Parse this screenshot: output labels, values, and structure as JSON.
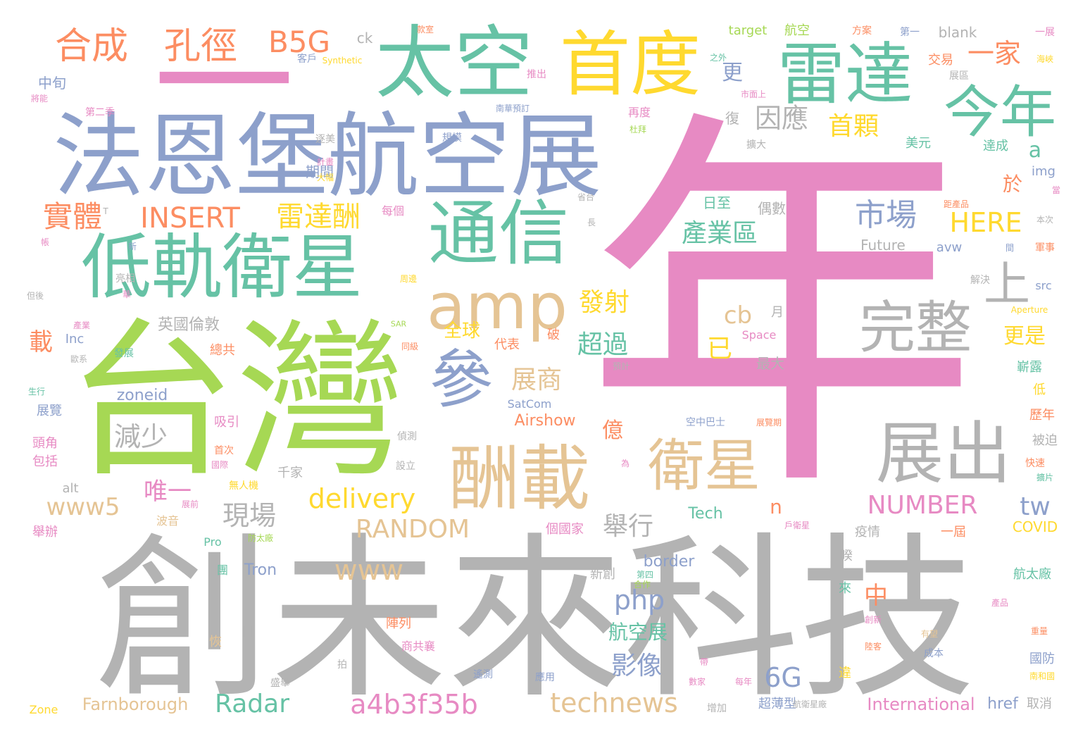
{
  "palette": {
    "pink": "#e78ac3",
    "gray": "#b3b3b3",
    "green": "#66c2a5",
    "orange": "#fc8d62",
    "blue": "#8da0cb",
    "lime": "#a6d854",
    "yellow": "#ffd92f",
    "tan": "#e5c494"
  },
  "words": [
    {
      "text": "年",
      "color": "pink"
    },
    {
      "text": "創未來科技",
      "color": "gray"
    },
    {
      "text": "台灣",
      "color": "lime"
    },
    {
      "text": "法恩堡航空展",
      "color": "blue"
    },
    {
      "text": "一",
      "color": "pink"
    },
    {
      "text": "太空",
      "color": "green"
    },
    {
      "text": "首度",
      "color": "yellow"
    },
    {
      "text": "雷達",
      "color": "green"
    },
    {
      "text": "今年",
      "color": "green"
    },
    {
      "text": "低軌衛星",
      "color": "green"
    },
    {
      "text": "通信",
      "color": "green"
    },
    {
      "text": "amp",
      "color": "tan"
    },
    {
      "text": "參",
      "color": "blue"
    },
    {
      "text": "酬載",
      "color": "tan"
    },
    {
      "text": "衛星",
      "color": "tan"
    },
    {
      "text": "完整",
      "color": "gray"
    },
    {
      "text": "展出",
      "color": "gray"
    },
    {
      "text": "上",
      "color": "gray"
    },
    {
      "text": "合成",
      "color": "orange"
    },
    {
      "text": "孔徑",
      "color": "orange"
    },
    {
      "text": "B5G",
      "color": "orange"
    },
    {
      "text": "實體",
      "color": "orange"
    },
    {
      "text": "INSERT",
      "color": "orange"
    },
    {
      "text": "雷達酬",
      "color": "yellow"
    },
    {
      "text": "市場",
      "color": "blue"
    },
    {
      "text": "HERE",
      "color": "yellow"
    },
    {
      "text": "產業區",
      "color": "green"
    },
    {
      "text": "因應",
      "color": "gray"
    },
    {
      "text": "首顆",
      "color": "yellow"
    },
    {
      "text": "一家",
      "color": "orange"
    },
    {
      "text": "a",
      "color": "green"
    },
    {
      "text": "於",
      "color": "orange"
    },
    {
      "text": "更",
      "color": "blue"
    },
    {
      "text": "發射",
      "color": "yellow"
    },
    {
      "text": "超過",
      "color": "green"
    },
    {
      "text": "cb",
      "color": "tan"
    },
    {
      "text": "已",
      "color": "yellow"
    },
    {
      "text": "全球",
      "color": "yellow"
    },
    {
      "text": "展商",
      "color": "tan"
    },
    {
      "text": "減少",
      "color": "gray"
    },
    {
      "text": "www5",
      "color": "tan"
    },
    {
      "text": "唯一",
      "color": "pink"
    },
    {
      "text": "delivery",
      "color": "yellow"
    },
    {
      "text": "現場",
      "color": "gray"
    },
    {
      "text": "RANDOM",
      "color": "tan"
    },
    {
      "text": "www",
      "color": "tan"
    },
    {
      "text": "舉行",
      "color": "gray"
    },
    {
      "text": "n",
      "color": "orange"
    },
    {
      "text": "NUMBER",
      "color": "pink"
    },
    {
      "text": "tw",
      "color": "blue"
    },
    {
      "text": "php",
      "color": "blue"
    },
    {
      "text": "中",
      "color": "orange"
    },
    {
      "text": "影像",
      "color": "blue"
    },
    {
      "text": "6G",
      "color": "blue"
    },
    {
      "text": "Radar",
      "color": "green"
    },
    {
      "text": "a4b3f35b",
      "color": "pink"
    },
    {
      "text": "technews",
      "color": "tan"
    },
    {
      "text": "更是",
      "color": "yellow"
    },
    {
      "text": "億",
      "color": "orange"
    },
    {
      "text": "航空展",
      "color": "green"
    },
    {
      "text": "載",
      "color": "orange"
    },
    {
      "text": "英國倫敦",
      "color": "gray"
    },
    {
      "text": "zoneid",
      "color": "blue"
    },
    {
      "text": "Airshow",
      "color": "orange"
    },
    {
      "text": "Farnborough",
      "color": "tan"
    },
    {
      "text": "International",
      "color": "pink"
    },
    {
      "text": "Tech",
      "color": "green"
    },
    {
      "text": "Tron",
      "color": "blue"
    },
    {
      "text": "border",
      "color": "blue"
    },
    {
      "text": "COVID",
      "color": "yellow"
    },
    {
      "text": "target",
      "color": "lime"
    },
    {
      "text": "航空",
      "color": "lime"
    },
    {
      "text": "blank",
      "color": "gray"
    },
    {
      "text": "ck",
      "color": "gray"
    },
    {
      "text": "Synthetic",
      "color": "yellow"
    },
    {
      "text": "Future",
      "color": "gray"
    },
    {
      "text": "avw",
      "color": "blue"
    },
    {
      "text": "img",
      "color": "blue"
    },
    {
      "text": "src",
      "color": "blue"
    },
    {
      "text": "Inc",
      "color": "blue"
    },
    {
      "text": "SatCom",
      "color": "blue"
    },
    {
      "text": "Space",
      "color": "pink"
    },
    {
      "text": "Aperture",
      "color": "yellow"
    },
    {
      "text": "SAR",
      "color": "lime"
    },
    {
      "text": "Pro",
      "color": "green"
    },
    {
      "text": "alt",
      "color": "gray"
    },
    {
      "text": "href",
      "color": "blue"
    },
    {
      "text": "Zone",
      "color": "yellow"
    },
    {
      "text": "中旬",
      "color": "blue"
    },
    {
      "text": "期間",
      "color": "blue"
    },
    {
      "text": "規模",
      "color": "blue"
    },
    {
      "text": "每個",
      "color": "pink"
    },
    {
      "text": "日至",
      "color": "green"
    },
    {
      "text": "偶數",
      "color": "gray"
    },
    {
      "text": "交易",
      "color": "orange"
    },
    {
      "text": "美元",
      "color": "green"
    },
    {
      "text": "達成",
      "color": "green"
    },
    {
      "text": "復",
      "color": "gray"
    },
    {
      "text": "再度",
      "color": "pink"
    },
    {
      "text": "杜拜",
      "color": "lime"
    },
    {
      "text": "月",
      "color": "gray"
    },
    {
      "text": "最大",
      "color": "gray"
    },
    {
      "text": "代表",
      "color": "orange"
    },
    {
      "text": "破",
      "color": "orange"
    },
    {
      "text": "總共",
      "color": "orange"
    },
    {
      "text": "展覽",
      "color": "blue"
    },
    {
      "text": "吸引",
      "color": "pink"
    },
    {
      "text": "頭角",
      "color": "pink"
    },
    {
      "text": "包括",
      "color": "pink"
    },
    {
      "text": "千家",
      "color": "gray"
    },
    {
      "text": "波音",
      "color": "tan"
    },
    {
      "text": "舉辦",
      "color": "pink"
    },
    {
      "text": "空中巴士",
      "color": "blue"
    },
    {
      "text": "歷年",
      "color": "orange"
    },
    {
      "text": "被迫",
      "color": "gray"
    },
    {
      "text": "嶄露",
      "color": "green"
    },
    {
      "text": "低",
      "color": "yellow"
    },
    {
      "text": "軍事",
      "color": "orange"
    },
    {
      "text": "解決",
      "color": "gray"
    },
    {
      "text": "疫情",
      "color": "gray"
    },
    {
      "text": "一屆",
      "color": "orange"
    },
    {
      "text": "睽",
      "color": "gray"
    },
    {
      "text": "來",
      "color": "green"
    },
    {
      "text": "新創",
      "color": "gray"
    },
    {
      "text": "個國家",
      "color": "pink"
    },
    {
      "text": "航太廠",
      "color": "green"
    },
    {
      "text": "國防",
      "color": "blue"
    },
    {
      "text": "陣列",
      "color": "orange"
    },
    {
      "text": "違",
      "color": "yellow"
    },
    {
      "text": "超薄型",
      "color": "blue"
    },
    {
      "text": "取消",
      "color": "gray"
    },
    {
      "text": "團",
      "color": "green"
    },
    {
      "text": "恢",
      "color": "tan"
    },
    {
      "text": "日",
      "color": "gray"
    },
    {
      "text": "第四",
      "color": "green"
    },
    {
      "text": "偵測",
      "color": "gray"
    },
    {
      "text": "設立",
      "color": "gray"
    },
    {
      "text": "無人機",
      "color": "yellow"
    },
    {
      "text": "展前",
      "color": "pink"
    },
    {
      "text": "首次",
      "color": "orange"
    },
    {
      "text": "盛舉",
      "color": "gray"
    },
    {
      "text": "增加",
      "color": "gray"
    },
    {
      "text": "每年",
      "color": "pink"
    },
    {
      "text": "數家",
      "color": "pink"
    },
    {
      "text": "遙測",
      "color": "blue"
    },
    {
      "text": "應用",
      "color": "blue"
    },
    {
      "text": "拍",
      "color": "gray"
    },
    {
      "text": "商共襄",
      "color": "pink"
    },
    {
      "text": "成本",
      "color": "blue"
    },
    {
      "text": "有望",
      "color": "tan"
    },
    {
      "text": "重量",
      "color": "orange"
    },
    {
      "text": "產品",
      "color": "pink"
    },
    {
      "text": "快速",
      "color": "orange"
    },
    {
      "text": "擴大",
      "color": "gray"
    },
    {
      "text": "展區",
      "color": "gray"
    },
    {
      "text": "方案",
      "color": "orange"
    },
    {
      "text": "第一",
      "color": "blue"
    },
    {
      "text": "一展",
      "color": "pink"
    },
    {
      "text": "客戶",
      "color": "blue"
    },
    {
      "text": "之外",
      "color": "green"
    },
    {
      "text": "推出",
      "color": "pink"
    },
    {
      "text": "第二季",
      "color": "pink"
    },
    {
      "text": "將能",
      "color": "pink"
    },
    {
      "text": "逐美",
      "color": "gray"
    },
    {
      "text": "計畫",
      "color": "pink"
    },
    {
      "text": "大幅",
      "color": "yellow"
    },
    {
      "text": "亮相",
      "color": "gray"
    },
    {
      "text": "新",
      "color": "blue"
    },
    {
      "text": "長",
      "color": "gray"
    },
    {
      "text": "本次",
      "color": "gray"
    },
    {
      "text": "間",
      "color": "blue"
    },
    {
      "text": "產業",
      "color": "pink"
    },
    {
      "text": "發展",
      "color": "green"
    },
    {
      "text": "歐系",
      "color": "gray"
    },
    {
      "text": "預計",
      "color": "gray"
    },
    {
      "text": "同級",
      "color": "orange"
    },
    {
      "text": "國際",
      "color": "pink"
    },
    {
      "text": "展覽期",
      "color": "orange"
    },
    {
      "text": "防太廠",
      "color": "lime"
    },
    {
      "text": "合作",
      "color": "lime"
    },
    {
      "text": "創新",
      "color": "pink"
    },
    {
      "text": "陸客",
      "color": "orange"
    },
    {
      "text": "為",
      "color": "pink"
    },
    {
      "text": "擴片",
      "color": "green"
    },
    {
      "text": "市面上",
      "color": "pink"
    },
    {
      "text": "戶衛星",
      "color": "pink"
    },
    {
      "text": "航衛星廠",
      "color": "gray"
    },
    {
      "text": "距產品",
      "color": "orange"
    },
    {
      "text": "海峽",
      "color": "yellow"
    },
    {
      "text": "當",
      "color": "pink"
    },
    {
      "text": "T",
      "color": "gray"
    },
    {
      "text": "帳",
      "color": "pink"
    },
    {
      "text": "但後",
      "color": "gray"
    },
    {
      "text": "華",
      "color": "pink"
    },
    {
      "text": "周邊",
      "color": "yellow"
    },
    {
      "text": "生行",
      "color": "green"
    },
    {
      "text": "帶",
      "color": "pink"
    },
    {
      "text": "南和國",
      "color": "yellow"
    },
    {
      "text": "南華預訂",
      "color": "blue"
    },
    {
      "text": "省台",
      "color": "gray"
    },
    {
      "text": "款室",
      "color": "orange"
    }
  ]
}
